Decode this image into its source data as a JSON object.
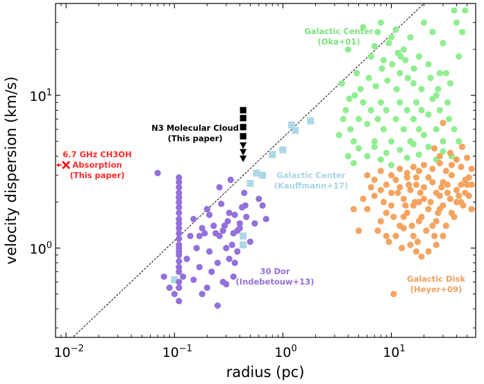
{
  "chart_data": {
    "type": "scatter",
    "xscale": "log",
    "yscale": "log",
    "xlim": [
      0.008,
      60
    ],
    "ylim": [
      0.26,
      40
    ],
    "xlabel": "radius (pc)",
    "ylabel": "velocity dispersion (km/s)",
    "xticks": [
      {
        "value": 0.01,
        "base": "10",
        "exp": "−2"
      },
      {
        "value": 0.1,
        "base": "10",
        "exp": "−1"
      },
      {
        "value": 1,
        "base": "10",
        "exp": "0"
      },
      {
        "value": 10,
        "base": "10",
        "exp": "1"
      }
    ],
    "yticks": [
      {
        "value": 1,
        "base": "10",
        "exp": "0"
      },
      {
        "value": 10,
        "base": "10",
        "exp": "1"
      }
    ],
    "reference_line": {
      "style": "dashed",
      "color": "#000000",
      "x": [
        0.009,
        20
      ],
      "y": [
        0.22,
        40
      ]
    },
    "series": [
      {
        "name": "Galactic Center (Oka+01)",
        "color": "#90ee90",
        "marker": "circle",
        "label_lines": [
          "Galactic Center",
          "(Oka+01)"
        ],
        "points": [
          [
            3.5,
            12
          ],
          [
            4.0,
            20
          ],
          [
            4.8,
            14
          ],
          [
            5.5,
            28
          ],
          [
            6.5,
            18
          ],
          [
            7.5,
            26
          ],
          [
            8,
            30
          ],
          [
            10,
            24
          ],
          [
            11,
            27
          ],
          [
            12,
            14
          ],
          [
            13,
            20
          ],
          [
            15,
            24
          ],
          [
            16,
            12
          ],
          [
            18,
            18
          ],
          [
            20,
            30
          ],
          [
            22,
            16
          ],
          [
            24,
            26
          ],
          [
            26,
            10
          ],
          [
            28,
            14
          ],
          [
            30,
            22
          ],
          [
            33,
            9
          ],
          [
            35,
            12
          ],
          [
            38,
            36
          ],
          [
            40,
            30
          ],
          [
            42,
            18
          ],
          [
            45,
            26
          ],
          [
            48,
            36
          ],
          [
            3.8,
            8
          ],
          [
            4.2,
            6
          ],
          [
            4.5,
            5
          ],
          [
            5,
            7
          ],
          [
            5.5,
            9
          ],
          [
            6,
            6.5
          ],
          [
            6.5,
            8
          ],
          [
            7,
            5
          ],
          [
            7.5,
            7
          ],
          [
            8,
            9
          ],
          [
            8.5,
            6
          ],
          [
            9,
            8
          ],
          [
            10,
            5
          ],
          [
            11,
            7
          ],
          [
            12,
            9
          ],
          [
            13,
            6
          ],
          [
            14,
            8
          ],
          [
            15,
            5
          ],
          [
            16,
            7
          ],
          [
            17,
            9
          ],
          [
            18,
            6
          ],
          [
            19,
            8
          ],
          [
            20,
            5.5
          ],
          [
            22,
            7.5
          ],
          [
            24,
            9.5
          ],
          [
            26,
            6
          ],
          [
            28,
            8
          ],
          [
            30,
            5
          ],
          [
            34,
            7
          ],
          [
            38,
            6
          ],
          [
            42,
            5
          ],
          [
            4,
            4
          ],
          [
            4.5,
            3.6
          ],
          [
            5,
            4.5
          ],
          [
            6,
            4
          ],
          [
            7,
            4.6
          ],
          [
            8,
            3.8
          ],
          [
            9,
            4.2
          ],
          [
            10,
            3.5
          ],
          [
            12,
            4.4
          ],
          [
            14,
            3.9
          ],
          [
            16,
            4.8
          ],
          [
            18,
            4.1
          ],
          [
            22,
            4.6
          ],
          [
            26,
            3.8
          ],
          [
            30,
            4.3
          ],
          [
            36,
            4
          ],
          [
            5.2,
            11
          ],
          [
            6.2,
            13
          ],
          [
            7.2,
            11.5
          ],
          [
            8.2,
            15
          ],
          [
            9.2,
            12.5
          ],
          [
            10.2,
            16
          ],
          [
            11.2,
            11
          ],
          [
            12.2,
            18
          ],
          [
            14.2,
            13
          ],
          [
            16.2,
            15
          ],
          [
            19,
            11
          ],
          [
            23,
            13
          ],
          [
            27,
            11
          ],
          [
            32,
            14
          ],
          [
            3.3,
            5.5
          ],
          [
            3.6,
            7
          ],
          [
            4.1,
            9.5
          ],
          [
            4.6,
            10
          ],
          [
            9.5,
            22
          ],
          [
            7,
            21
          ],
          [
            8.5,
            17
          ],
          [
            11.5,
            19
          ],
          [
            13.5,
            17
          ]
        ]
      },
      {
        "name": "Galactic Disk (Heyer+09)",
        "color": "#f4a460",
        "marker": "circle",
        "label_lines": [
          "Galactic Disk",
          "(Heyer+09)"
        ],
        "points": [
          [
            5,
            1.3
          ],
          [
            6,
            1.8
          ],
          [
            7,
            2.2
          ],
          [
            8,
            1.5
          ],
          [
            9,
            2.6
          ],
          [
            10,
            1.9
          ],
          [
            11,
            2.8
          ],
          [
            12,
            1.4
          ],
          [
            13,
            2.1
          ],
          [
            14,
            1.7
          ],
          [
            15,
            2.4
          ],
          [
            16,
            1.2
          ],
          [
            17,
            2.9
          ],
          [
            18,
            2
          ],
          [
            19,
            1.6
          ],
          [
            20,
            2.5
          ],
          [
            22,
            1.8
          ],
          [
            24,
            2.7
          ],
          [
            26,
            1.5
          ],
          [
            28,
            2.2
          ],
          [
            30,
            1.9
          ],
          [
            33,
            2.6
          ],
          [
            36,
            1.7
          ],
          [
            40,
            2.4
          ],
          [
            44,
            2
          ],
          [
            48,
            2.8
          ],
          [
            52,
            2.2
          ],
          [
            55,
            1.8
          ],
          [
            6.5,
            2.5
          ],
          [
            7.5,
            1.3
          ],
          [
            8.5,
            2
          ],
          [
            9.5,
            1.1
          ],
          [
            10.5,
            1.6
          ],
          [
            11.5,
            2.3
          ],
          [
            12.5,
            1
          ],
          [
            13.5,
            1.9
          ],
          [
            14.5,
            2.6
          ],
          [
            15.5,
            1.4
          ],
          [
            16.5,
            2
          ],
          [
            17.5,
            1.1
          ],
          [
            18.5,
            2.3
          ],
          [
            21,
            1.3
          ],
          [
            23,
            2
          ],
          [
            25,
            1.2
          ],
          [
            27,
            1.7
          ],
          [
            29,
            2.5
          ],
          [
            32,
            1.4
          ],
          [
            35,
            2.1
          ],
          [
            38,
            1.6
          ],
          [
            42,
            2.2
          ],
          [
            46,
            1.9
          ],
          [
            50,
            2.6
          ],
          [
            6,
            3
          ],
          [
            8,
            3.2
          ],
          [
            10,
            3
          ],
          [
            12,
            3.3
          ],
          [
            14,
            3.1
          ],
          [
            16,
            3.4
          ],
          [
            18,
            3.2
          ],
          [
            20,
            3.5
          ],
          [
            24,
            3.3
          ],
          [
            28,
            3.6
          ],
          [
            32,
            3.2
          ],
          [
            36,
            3.5
          ],
          [
            40,
            3.8
          ],
          [
            44,
            3.4
          ],
          [
            50,
            3.9
          ],
          [
            55,
            3.3
          ],
          [
            25,
            4.5
          ],
          [
            35,
            4.2
          ],
          [
            45,
            4.6
          ],
          [
            30,
            6.6
          ],
          [
            28,
            4
          ],
          [
            11,
            1.2
          ],
          [
            13,
            1.35
          ],
          [
            15,
            1.05
          ],
          [
            17,
            0.95
          ],
          [
            19,
            0.88
          ],
          [
            22,
            0.95
          ],
          [
            26,
            1.05
          ],
          [
            30,
            1.2
          ],
          [
            10.5,
            0.5
          ],
          [
            9,
            1.2
          ],
          [
            5.5,
            2.1
          ],
          [
            4.5,
            1.8
          ],
          [
            7,
            2.8
          ],
          [
            8,
            2.4
          ],
          [
            9,
            1.7
          ],
          [
            10,
            2.3
          ],
          [
            12,
            2.5
          ],
          [
            13,
            1.6
          ],
          [
            14,
            2.9
          ],
          [
            16,
            1.9
          ],
          [
            17,
            2.6
          ],
          [
            18,
            1.5
          ],
          [
            20,
            2.1
          ],
          [
            22,
            2.9
          ],
          [
            24,
            1.4
          ],
          [
            26,
            2.3
          ],
          [
            28,
            1.8
          ],
          [
            30,
            2.7
          ],
          [
            33,
            2.3
          ],
          [
            36,
            3
          ],
          [
            40,
            2
          ],
          [
            44,
            2.6
          ],
          [
            48,
            2.3
          ],
          [
            52,
            2.9
          ],
          [
            55,
            2.6
          ]
        ]
      },
      {
        "name": "Galactic Center (Kauffmann+17)",
        "color": "#add8e6",
        "marker": "square",
        "label_lines": [
          "Galactic Center",
          "(Kauffmann+17)"
        ],
        "points": [
          [
            0.1,
            0.62
          ],
          [
            0.43,
            1.2
          ],
          [
            0.43,
            1.05
          ],
          [
            0.5,
            2.65
          ],
          [
            0.57,
            3.1
          ],
          [
            0.65,
            3.0
          ],
          [
            0.8,
            4.1
          ],
          [
            1.0,
            4.4
          ],
          [
            1.2,
            6.4
          ],
          [
            1.3,
            5.9
          ],
          [
            1.8,
            6.8
          ]
        ]
      },
      {
        "name": "30 Dor (Indebetouw+13)",
        "color": "#9370db",
        "marker": "circle",
        "label_lines": [
          "30 Dor",
          "(Indebetouw+13)"
        ],
        "points": [
          [
            0.07,
            3.1
          ],
          [
            0.08,
            0.65
          ],
          [
            0.09,
            0.55
          ],
          [
            0.1,
            0.5
          ],
          [
            0.11,
            0.45
          ],
          [
            0.11,
            0.55
          ],
          [
            0.11,
            0.6
          ],
          [
            0.11,
            0.7
          ],
          [
            0.11,
            0.75
          ],
          [
            0.11,
            0.82
          ],
          [
            0.11,
            0.9
          ],
          [
            0.11,
            0.95
          ],
          [
            0.11,
            1.0
          ],
          [
            0.11,
            1.05
          ],
          [
            0.11,
            1.15
          ],
          [
            0.11,
            1.25
          ],
          [
            0.11,
            1.35
          ],
          [
            0.11,
            1.45
          ],
          [
            0.11,
            1.55
          ],
          [
            0.11,
            1.7
          ],
          [
            0.11,
            1.85
          ],
          [
            0.11,
            2.0
          ],
          [
            0.11,
            2.15
          ],
          [
            0.11,
            2.3
          ],
          [
            0.11,
            2.5
          ],
          [
            0.11,
            2.7
          ],
          [
            0.11,
            2.9
          ],
          [
            0.12,
            0.65
          ],
          [
            0.13,
            0.85
          ],
          [
            0.14,
            1.2
          ],
          [
            0.15,
            1.55
          ],
          [
            0.16,
            1.0
          ],
          [
            0.17,
            0.75
          ],
          [
            0.18,
            1.35
          ],
          [
            0.2,
            1.8
          ],
          [
            0.21,
            0.95
          ],
          [
            0.22,
            0.7
          ],
          [
            0.23,
            1.4
          ],
          [
            0.25,
            0.8
          ],
          [
            0.26,
            1.2
          ],
          [
            0.27,
            1.95
          ],
          [
            0.28,
            0.6
          ],
          [
            0.3,
            1.0
          ],
          [
            0.31,
            1.5
          ],
          [
            0.32,
            0.85
          ],
          [
            0.33,
            2.8
          ],
          [
            0.35,
            1.25
          ],
          [
            0.36,
            1.65
          ],
          [
            0.38,
            0.95
          ],
          [
            0.4,
            1.45
          ],
          [
            0.42,
            1.85
          ],
          [
            0.44,
            2.3
          ],
          [
            0.46,
            1.6
          ],
          [
            0.5,
            1.1
          ],
          [
            0.55,
            1.45
          ],
          [
            0.6,
            2.1
          ],
          [
            0.65,
            1.9
          ],
          [
            0.7,
            1.55
          ],
          [
            0.2,
            0.55
          ],
          [
            0.25,
            0.42
          ],
          [
            0.3,
            0.58
          ],
          [
            0.35,
            0.65
          ],
          [
            0.15,
            0.62
          ],
          [
            0.18,
            0.5
          ],
          [
            0.26,
            2.5
          ],
          [
            0.38,
            1.3
          ],
          [
            0.24,
            1.25
          ],
          [
            0.28,
            1.3
          ],
          [
            0.32,
            1.7
          ],
          [
            0.36,
            0.8
          ],
          [
            0.34,
            1.05
          ],
          [
            0.29,
            1.4
          ],
          [
            0.21,
            1.65
          ],
          [
            0.19,
            1.25
          ],
          [
            0.17,
            1.2
          ],
          [
            0.45,
            1.9
          ],
          [
            0.4,
            1.35
          ]
        ]
      },
      {
        "name": "N3 Molecular Cloud (This paper)",
        "color": "#000000",
        "marker": "square",
        "label_lines": [
          "N3 Molecular Cloud",
          "(This paper)"
        ],
        "points": [
          [
            0.43,
            8.0
          ],
          [
            0.43,
            7.1
          ],
          [
            0.43,
            6.2
          ],
          [
            0.43,
            5.4
          ]
        ]
      },
      {
        "name": "N3 Molecular Cloud upper limits",
        "color": "#000000",
        "marker": "triangle-down",
        "label_lines": [],
        "points": [
          [
            0.43,
            4.7
          ],
          [
            0.43,
            4.25
          ],
          [
            0.43,
            3.85
          ]
        ]
      },
      {
        "name": "6.7 GHz CH3OH Absorption (This paper)",
        "color": "#ff0000",
        "marker": "x",
        "label_lines": [
          "6.7 GHz CH3OH",
          "Absorption",
          "(This paper)"
        ],
        "points": [
          [
            0.01,
            3.5
          ]
        ]
      }
    ]
  }
}
